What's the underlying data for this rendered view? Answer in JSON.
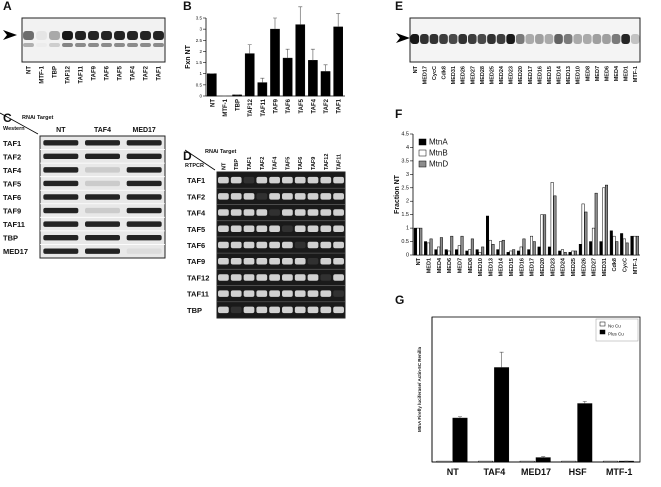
{
  "panel_labels": [
    "A",
    "B",
    "C",
    "D",
    "E",
    "F",
    "G"
  ],
  "gels": {
    "a": {
      "lanes": [
        "NT",
        "MTF-1",
        "TBP",
        "TAF12",
        "TAF11",
        "TAF9",
        "TAF6",
        "TAF5",
        "TAF4",
        "TAF2",
        "TAF1"
      ]
    },
    "c": {
      "header": "RNAi Target",
      "method": "Western",
      "columns": [
        "NT",
        "TAF4",
        "MED17"
      ],
      "rows": [
        "TAF1",
        "TAF2",
        "TAF4",
        "TAF5",
        "TAF6",
        "TAF9",
        "TAF11",
        "TBP",
        "MED17"
      ]
    },
    "d": {
      "header": "RNAi Target",
      "method": "RTPCR",
      "columns": [
        "NT",
        "TBP",
        "TAF1",
        "TAF2",
        "TAF4",
        "TAF5",
        "TAF6",
        "TAF9",
        "TAF12",
        "TAF11"
      ],
      "rows": [
        "TAF1",
        "TAF2",
        "TAF4",
        "TAF5",
        "TAF6",
        "TAF9",
        "TAF12",
        "TAF11",
        "TBP"
      ]
    },
    "e": {
      "lanes": [
        "NT",
        "MED17",
        "CycC",
        "Cdk8",
        "MED31",
        "MED26",
        "MED27",
        "MED28",
        "MED25",
        "MED24",
        "MED23",
        "MED20",
        "MED17",
        "MED16",
        "MED15",
        "MED14",
        "MED13",
        "MED10",
        "MED8",
        "MED7",
        "MED6",
        "MED4",
        "MED1",
        "MTF-1"
      ]
    }
  },
  "chart_data": [
    {
      "type": "bar",
      "y_label": "Fxn NT",
      "categories": [
        "NT",
        "MTF-1",
        "TBP",
        "TAF12",
        "TAF11",
        "TAF9",
        "TAF6",
        "TAF5",
        "TAF4",
        "TAF2",
        "TAF1"
      ],
      "values": [
        1.0,
        0,
        0.05,
        1.9,
        0.6,
        3.0,
        1.7,
        3.2,
        1.6,
        1.1,
        3.1
      ],
      "errors": [
        0,
        0,
        0,
        0.4,
        0.2,
        0.5,
        0.4,
        0.8,
        0.5,
        0.3,
        0.6
      ],
      "color": "#000000",
      "ylim": [
        0,
        3.5
      ],
      "yticks": [
        0,
        0.5,
        1,
        1.5,
        2,
        2.5,
        3,
        3.5
      ]
    },
    {
      "type": "bar",
      "y_label": "Fraction NT",
      "legend": "upper left",
      "categories": [
        "NT",
        "MED1",
        "MED4",
        "MED6",
        "MED7",
        "MED8",
        "MED10",
        "MED13",
        "MED14",
        "MED15",
        "MED16",
        "MED17",
        "MED20",
        "MED23",
        "MED24",
        "MED25",
        "MED26",
        "MED27",
        "MED31",
        "Cdk8",
        "CycC",
        "MTF-1"
      ],
      "series": [
        {
          "name": "MtnA",
          "color": "#000000",
          "values": [
            1,
            0.5,
            0.2,
            0.2,
            0.2,
            0.15,
            0.2,
            1.45,
            0.2,
            0.1,
            0.15,
            0.2,
            0.3,
            0.3,
            0.15,
            0.1,
            0.4,
            0.5,
            0.5,
            0.9,
            0.8,
            0.7
          ]
        },
        {
          "name": "MtnB",
          "color": "#ffffff",
          "values": [
            1,
            0.45,
            0.3,
            0.15,
            0.35,
            0.2,
            0.1,
            0.55,
            0.5,
            0.15,
            0.3,
            0.7,
            1.5,
            2.7,
            0.2,
            0.15,
            1.9,
            1.0,
            2.5,
            0.7,
            0.6,
            0.7
          ]
        },
        {
          "name": "MtnD",
          "color": "#8c8c8c",
          "values": [
            1,
            0.6,
            0.65,
            0.7,
            0.7,
            0.6,
            0.3,
            0.4,
            0.55,
            0.2,
            0.6,
            0.5,
            1.5,
            2.2,
            0.1,
            0.15,
            1.6,
            2.3,
            2.6,
            0.5,
            0.45,
            0.7
          ]
        }
      ],
      "ylim": [
        0,
        4.5
      ],
      "yticks": [
        0,
        0.5,
        1,
        1.5,
        2,
        2.5,
        3,
        3.5,
        4,
        4.5
      ]
    },
    {
      "type": "bar",
      "y_label": "MtnA Firefly luciferase/ Actin-5C Renilla",
      "legend": "upper right",
      "frame": true,
      "categories": [
        "NT",
        "TAF4",
        "MED17",
        "HSF",
        "MTF-1"
      ],
      "series": [
        {
          "name": "No Cu",
          "color": "#ffffff",
          "values": [
            0.02,
            0.02,
            0.02,
            0.02,
            0.02
          ]
        },
        {
          "name": "Plus Cu",
          "color": "#000000",
          "values": [
            1.0,
            2.15,
            0.1,
            1.33,
            0.02
          ],
          "errors": [
            0.03,
            0.35,
            0.02,
            0.05,
            0
          ]
        }
      ],
      "ylim": [
        0,
        3.3
      ]
    }
  ]
}
